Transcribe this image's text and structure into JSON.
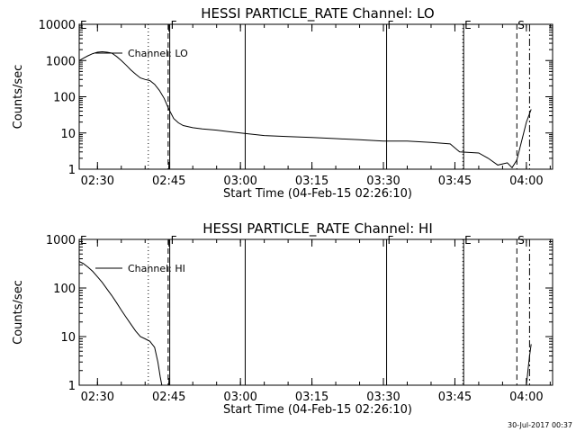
{
  "footer": {
    "timestamp": "30-Jul-2017 00:37"
  },
  "chart_data": [
    {
      "type": "line",
      "title": "HESSI PARTICLE_RATE Channel: LO",
      "xlabel": "Start Time (04-Feb-15 02:26:10)",
      "ylabel": "Counts/sec",
      "yscale": "log",
      "xlim": [
        "02:26:10",
        "04:05:30"
      ],
      "ylim": [
        1,
        10000
      ],
      "x_ticks": [
        "02:30",
        "02:45",
        "03:00",
        "03:15",
        "03:30",
        "03:45",
        "04:00"
      ],
      "y_ticks": [
        "1",
        "10",
        "100",
        "1000",
        "10000"
      ],
      "grid": false,
      "legend": {
        "position": "top-left",
        "entries": [
          "Channel: LO"
        ]
      },
      "markers": [
        {
          "label": "E",
          "time": "02:26:10",
          "style": "solid"
        },
        {
          "label": "",
          "time": "02:40:40",
          "style": "dotted"
        },
        {
          "label": "",
          "time": "02:44:50",
          "style": "dashed"
        },
        {
          "label": "F",
          "time": "02:45:10",
          "style": "solid"
        },
        {
          "label": "",
          "time": "03:01:00",
          "style": "solid"
        },
        {
          "label": "F",
          "time": "03:30:40",
          "style": "solid"
        },
        {
          "label": "",
          "time": "03:46:40",
          "style": "dotted"
        },
        {
          "label": "E",
          "time": "03:46:50",
          "style": "solid"
        },
        {
          "label": "S",
          "time": "03:58:00",
          "style": "dashed"
        },
        {
          "label": "",
          "time": "04:00:40",
          "style": "dashdot"
        }
      ],
      "series": [
        {
          "name": "Channel: LO",
          "points": [
            [
              "02:26:10",
              1000
            ],
            [
              "02:27:00",
              1150
            ],
            [
              "02:28:00",
              1350
            ],
            [
              "02:29:00",
              1550
            ],
            [
              "02:30:00",
              1700
            ],
            [
              "02:31:00",
              1750
            ],
            [
              "02:32:00",
              1700
            ],
            [
              "02:33:00",
              1600
            ],
            [
              "02:34:00",
              1300
            ],
            [
              "02:35:00",
              1000
            ],
            [
              "02:36:00",
              750
            ],
            [
              "02:37:00",
              550
            ],
            [
              "02:38:00",
              420
            ],
            [
              "02:39:00",
              330
            ],
            [
              "02:40:00",
              300
            ],
            [
              "02:41:00",
              280
            ],
            [
              "02:42:00",
              220
            ],
            [
              "02:43:00",
              150
            ],
            [
              "02:44:00",
              90
            ],
            [
              "02:45:00",
              45
            ],
            [
              "02:46:00",
              25
            ],
            [
              "02:47:00",
              19
            ],
            [
              "02:48:00",
              16
            ],
            [
              "02:50:00",
              14
            ],
            [
              "02:52:00",
              13
            ],
            [
              "02:55:00",
              12
            ],
            [
              "03:00:00",
              10
            ],
            [
              "03:05:00",
              8.5
            ],
            [
              "03:10:00",
              8
            ],
            [
              "03:15:00",
              7.5
            ],
            [
              "03:20:00",
              7
            ],
            [
              "03:25:00",
              6.5
            ],
            [
              "03:30:00",
              6
            ],
            [
              "03:35:00",
              6
            ],
            [
              "03:40:00",
              5.5
            ],
            [
              "03:44:00",
              5
            ],
            [
              "03:46:00",
              3
            ],
            [
              "03:50:00",
              2.8
            ],
            [
              "03:52:00",
              2
            ],
            [
              "03:54:00",
              1.3
            ],
            [
              "03:56:00",
              1.5
            ],
            [
              "03:57:00",
              1.1
            ],
            [
              "03:58:00",
              1.8
            ],
            [
              "03:59:00",
              6
            ],
            [
              "04:00:00",
              20
            ],
            [
              "04:01:00",
              45
            ]
          ]
        }
      ]
    },
    {
      "type": "line",
      "title": "HESSI PARTICLE_RATE Channel: HI",
      "xlabel": "Start Time (04-Feb-15 02:26:10)",
      "ylabel": "Counts/sec",
      "yscale": "log",
      "xlim": [
        "02:26:10",
        "04:05:30"
      ],
      "ylim": [
        1,
        1000
      ],
      "x_ticks": [
        "02:30",
        "02:45",
        "03:00",
        "03:15",
        "03:30",
        "03:45",
        "04:00"
      ],
      "y_ticks": [
        "1",
        "10",
        "100",
        "1000"
      ],
      "grid": false,
      "legend": {
        "position": "top-left",
        "entries": [
          "Channel: HI"
        ]
      },
      "markers": [
        {
          "label": "E",
          "time": "02:26:10",
          "style": "solid"
        },
        {
          "label": "",
          "time": "02:40:40",
          "style": "dotted"
        },
        {
          "label": "",
          "time": "02:44:50",
          "style": "dashed"
        },
        {
          "label": "F",
          "time": "02:45:10",
          "style": "solid"
        },
        {
          "label": "",
          "time": "03:01:00",
          "style": "solid"
        },
        {
          "label": "F",
          "time": "03:30:40",
          "style": "solid"
        },
        {
          "label": "",
          "time": "03:46:40",
          "style": "dotted"
        },
        {
          "label": "E",
          "time": "03:46:50",
          "style": "solid"
        },
        {
          "label": "S",
          "time": "03:58:00",
          "style": "dashed"
        },
        {
          "label": "",
          "time": "04:00:40",
          "style": "dashdot"
        }
      ],
      "series": [
        {
          "name": "Channel: HI",
          "points": [
            [
              "02:26:10",
              350
            ],
            [
              "02:27:00",
              320
            ],
            [
              "02:28:00",
              270
            ],
            [
              "02:29:00",
              220
            ],
            [
              "02:30:00",
              170
            ],
            [
              "02:31:00",
              130
            ],
            [
              "02:32:00",
              95
            ],
            [
              "02:33:00",
              70
            ],
            [
              "02:34:00",
              50
            ],
            [
              "02:35:00",
              35
            ],
            [
              "02:36:00",
              25
            ],
            [
              "02:37:00",
              18
            ],
            [
              "02:38:00",
              13
            ],
            [
              "02:39:00",
              10
            ],
            [
              "02:40:00",
              9
            ],
            [
              "02:41:00",
              8
            ],
            [
              "02:42:00",
              6
            ],
            [
              "02:42:40",
              3
            ],
            [
              "02:43:10",
              1.5
            ],
            [
              "02:43:30",
              1
            ]
          ]
        },
        {
          "name": "",
          "points": [
            [
              "04:00:00",
              1
            ],
            [
              "04:00:20",
              2
            ],
            [
              "04:00:40",
              4
            ],
            [
              "04:01:00",
              7
            ]
          ]
        }
      ]
    }
  ]
}
